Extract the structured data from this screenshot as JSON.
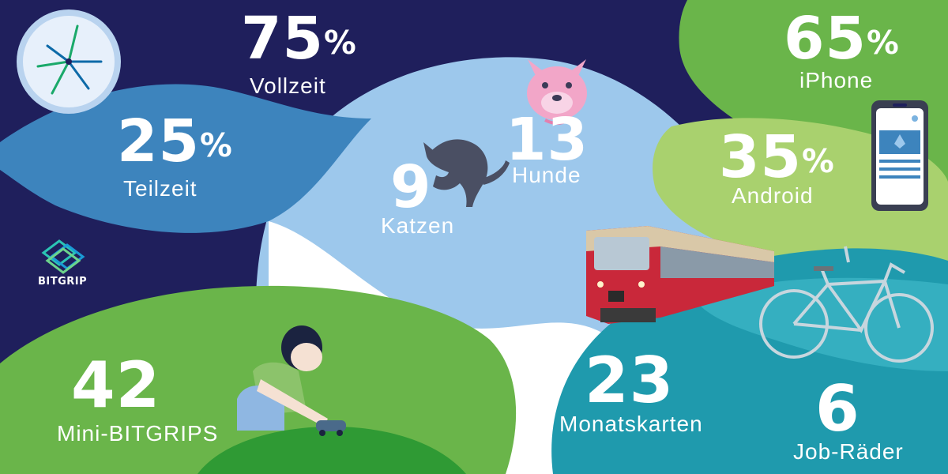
{
  "brand": {
    "name": "BITGRIP",
    "logo_icon": "bitgrip-logo-icon"
  },
  "colors": {
    "navy": "#1f1f5c",
    "sky_blue": "#9dc8ec",
    "mid_blue": "#3d84bd",
    "green": "#6ab54a",
    "light_green": "#a9d16e",
    "dark_green": "#3f9c3a",
    "teal": "#1f9aad"
  },
  "stats": {
    "vollzeit": {
      "value": "75",
      "suffix": "%",
      "label": "Vollzeit"
    },
    "teilzeit": {
      "value": "25",
      "suffix": "%",
      "label": "Teilzeit"
    },
    "katzen": {
      "value": "9",
      "label": "Katzen"
    },
    "hunde": {
      "value": "13",
      "label": "Hunde"
    },
    "iphone": {
      "value": "65",
      "suffix": "%",
      "label": "iPhone"
    },
    "android": {
      "value": "35",
      "suffix": "%",
      "label": "Android"
    },
    "mini_bitgrips": {
      "value": "42",
      "label": "Mini-BITGRIPS"
    },
    "monatskarten": {
      "value": "23",
      "label": "Monatskarten"
    },
    "job_raeder": {
      "value": "6",
      "label": "Job-Räder"
    }
  },
  "illustrations": [
    "clock-icon",
    "dog-icon",
    "cat-icon",
    "smartphone-icon",
    "train-icon",
    "bicycle-icon",
    "child-icon"
  ]
}
